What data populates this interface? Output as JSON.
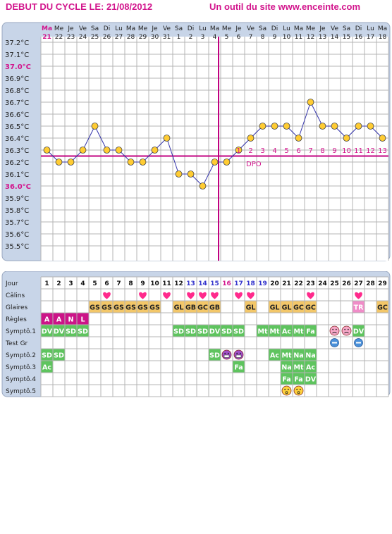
{
  "header": {
    "title": "DEBUT DU CYCLE LE: 21/08/2012",
    "site": "Un outil du site www.enceinte.com"
  },
  "colors": {
    "accent": "#d2148c",
    "frame_bg": "#c8d5e8",
    "grid": "#b4b4b4",
    "dot": "#ffcc33",
    "line": "#3333aa",
    "blue_day": "#3333cc",
    "heart": "#ff2a8c",
    "green_cell": "#5ec45e",
    "orange_cell": "#f3c769",
    "regles_cell": "#cc1488",
    "tr_cell": "#f08cc8",
    "dpo_line": "#c00080"
  },
  "chart_data": {
    "type": "line",
    "title": "DEBUT DU CYCLE LE: 21/08/2012",
    "weekdays": [
      "Ma",
      "Me",
      "Je",
      "Ve",
      "Sa",
      "Di",
      "Lu",
      "Ma",
      "Me",
      "Je",
      "Ve",
      "Sa",
      "Di",
      "Lu",
      "Ma",
      "Me",
      "Je",
      "Ve",
      "Sa",
      "Di",
      "Lu",
      "Ma",
      "Me",
      "Je",
      "Ve",
      "Sa",
      "Di",
      "Lu",
      "Ma"
    ],
    "dates": [
      "21",
      "22",
      "23",
      "24",
      "25",
      "26",
      "27",
      "28",
      "29",
      "30",
      "31",
      "1",
      "2",
      "3",
      "4",
      "5",
      "6",
      "7",
      "8",
      "9",
      "10",
      "11",
      "12",
      "13",
      "14",
      "15",
      "16",
      "17",
      "18"
    ],
    "y_ticks": [
      "37.2°C",
      "37.1°C",
      "37.0°C",
      "36.9°C",
      "36.8°C",
      "36.7°C",
      "36.6°C",
      "36.5°C",
      "36.4°C",
      "36.3°C",
      "36.2°C",
      "36.1°C",
      "36.0°C",
      "35.9°C",
      "35.8°C",
      "35.7°C",
      "35.6°C",
      "35.5°C"
    ],
    "highlight_ticks": [
      "37.0°C",
      "36.0°C"
    ],
    "ylim": [
      35.4,
      37.25
    ],
    "values": [
      36.3,
      36.2,
      36.2,
      36.3,
      36.5,
      36.3,
      36.3,
      36.2,
      36.2,
      36.3,
      36.4,
      36.1,
      36.1,
      36.0,
      36.2,
      36.2,
      36.3,
      36.4,
      36.5,
      36.5,
      36.5,
      36.4,
      36.7,
      36.5,
      36.5,
      36.4,
      36.5,
      36.5,
      36.4
    ],
    "coverline": 36.25,
    "ovulation_day": 16,
    "dpo_label": "DPO",
    "dpo_numbers": [
      "1",
      "2",
      "3",
      "4",
      "5",
      "6",
      "7",
      "8",
      "9",
      "10",
      "11",
      "12",
      "13"
    ],
    "grid": true
  },
  "table": {
    "row_labels": [
      "Jour",
      "Câlins",
      "Glaires",
      "Règles",
      "Symptô.1",
      "Test Gr",
      "Symptô.2",
      "Symptô.3",
      "Symptô.4",
      "Symptô.5"
    ],
    "days": [
      "1",
      "2",
      "3",
      "4",
      "5",
      "6",
      "7",
      "8",
      "9",
      "10",
      "11",
      "12",
      "13",
      "14",
      "15",
      "16",
      "17",
      "18",
      "19",
      "20",
      "21",
      "22",
      "23",
      "24",
      "25",
      "26",
      "27",
      "28",
      "29"
    ],
    "day_colors": {
      "13": "#3333cc",
      "14": "#3333cc",
      "15": "#3333cc",
      "16": "#d2148c",
      "17": "#3333cc",
      "18": "#3333cc",
      "19": "#3333cc"
    },
    "calins": [
      6,
      9,
      11,
      13,
      14,
      15,
      17,
      18,
      23,
      27
    ],
    "glaires": [
      {
        "day": 5,
        "text": "GS"
      },
      {
        "day": 6,
        "text": "GS"
      },
      {
        "day": 7,
        "text": "GS"
      },
      {
        "day": 8,
        "text": "GS"
      },
      {
        "day": 9,
        "text": "GS"
      },
      {
        "day": 10,
        "text": "GS"
      },
      {
        "day": 12,
        "text": "GL"
      },
      {
        "day": 13,
        "text": "GB"
      },
      {
        "day": 14,
        "text": "GC"
      },
      {
        "day": 15,
        "text": "GB"
      },
      {
        "day": 18,
        "text": "GL"
      },
      {
        "day": 20,
        "text": "GL"
      },
      {
        "day": 21,
        "text": "GL"
      },
      {
        "day": 22,
        "text": "GC"
      },
      {
        "day": 23,
        "text": "GC"
      },
      {
        "day": 27,
        "text": "TR",
        "style": "tr"
      },
      {
        "day": 29,
        "text": "GC"
      }
    ],
    "regles": [
      {
        "day": 1,
        "text": "A"
      },
      {
        "day": 2,
        "text": "A"
      },
      {
        "day": 3,
        "text": "N"
      },
      {
        "day": 4,
        "text": "L"
      }
    ],
    "sympto1": [
      {
        "day": 1,
        "text": "DV"
      },
      {
        "day": 2,
        "text": "DV"
      },
      {
        "day": 3,
        "text": "SD"
      },
      {
        "day": 4,
        "text": "SD"
      },
      {
        "day": 12,
        "text": "SD"
      },
      {
        "day": 13,
        "text": "SD"
      },
      {
        "day": 14,
        "text": "SD"
      },
      {
        "day": 15,
        "text": "DV"
      },
      {
        "day": 16,
        "text": "SD"
      },
      {
        "day": 17,
        "text": "SD"
      },
      {
        "day": 19,
        "text": "Mt"
      },
      {
        "day": 20,
        "text": "Mt"
      },
      {
        "day": 21,
        "text": "Ac"
      },
      {
        "day": 22,
        "text": "Mt"
      },
      {
        "day": 23,
        "text": "Fa"
      },
      {
        "day": 25,
        "text": "",
        "icon": "sad-face-icon"
      },
      {
        "day": 26,
        "text": "",
        "icon": "sad-face-icon"
      },
      {
        "day": 27,
        "text": "DV"
      }
    ],
    "test_gr": [
      25,
      27
    ],
    "sympto2": [
      {
        "day": 1,
        "text": "SD"
      },
      {
        "day": 2,
        "text": "SD"
      },
      {
        "day": 15,
        "text": "SD"
      },
      {
        "day": 16,
        "text": "",
        "icon": "grin-face-icon"
      },
      {
        "day": 17,
        "text": "",
        "icon": "grin-face-icon"
      },
      {
        "day": 20,
        "text": "Ac"
      },
      {
        "day": 21,
        "text": "Mt"
      },
      {
        "day": 22,
        "text": "Na"
      },
      {
        "day": 23,
        "text": "Na"
      }
    ],
    "sympto3": [
      {
        "day": 1,
        "text": "Ac"
      },
      {
        "day": 17,
        "text": "Fa"
      },
      {
        "day": 21,
        "text": "Na"
      },
      {
        "day": 22,
        "text": "Mt"
      },
      {
        "day": 23,
        "text": "Ac"
      }
    ],
    "sympto4": [
      {
        "day": 21,
        "text": "Fa"
      },
      {
        "day": 22,
        "text": "Fa"
      },
      {
        "day": 23,
        "text": "DV"
      }
    ],
    "sympto5": [
      {
        "day": 21,
        "text": "",
        "icon": "worried-face-icon"
      },
      {
        "day": 22,
        "text": "",
        "icon": "worried-face-icon"
      }
    ]
  }
}
